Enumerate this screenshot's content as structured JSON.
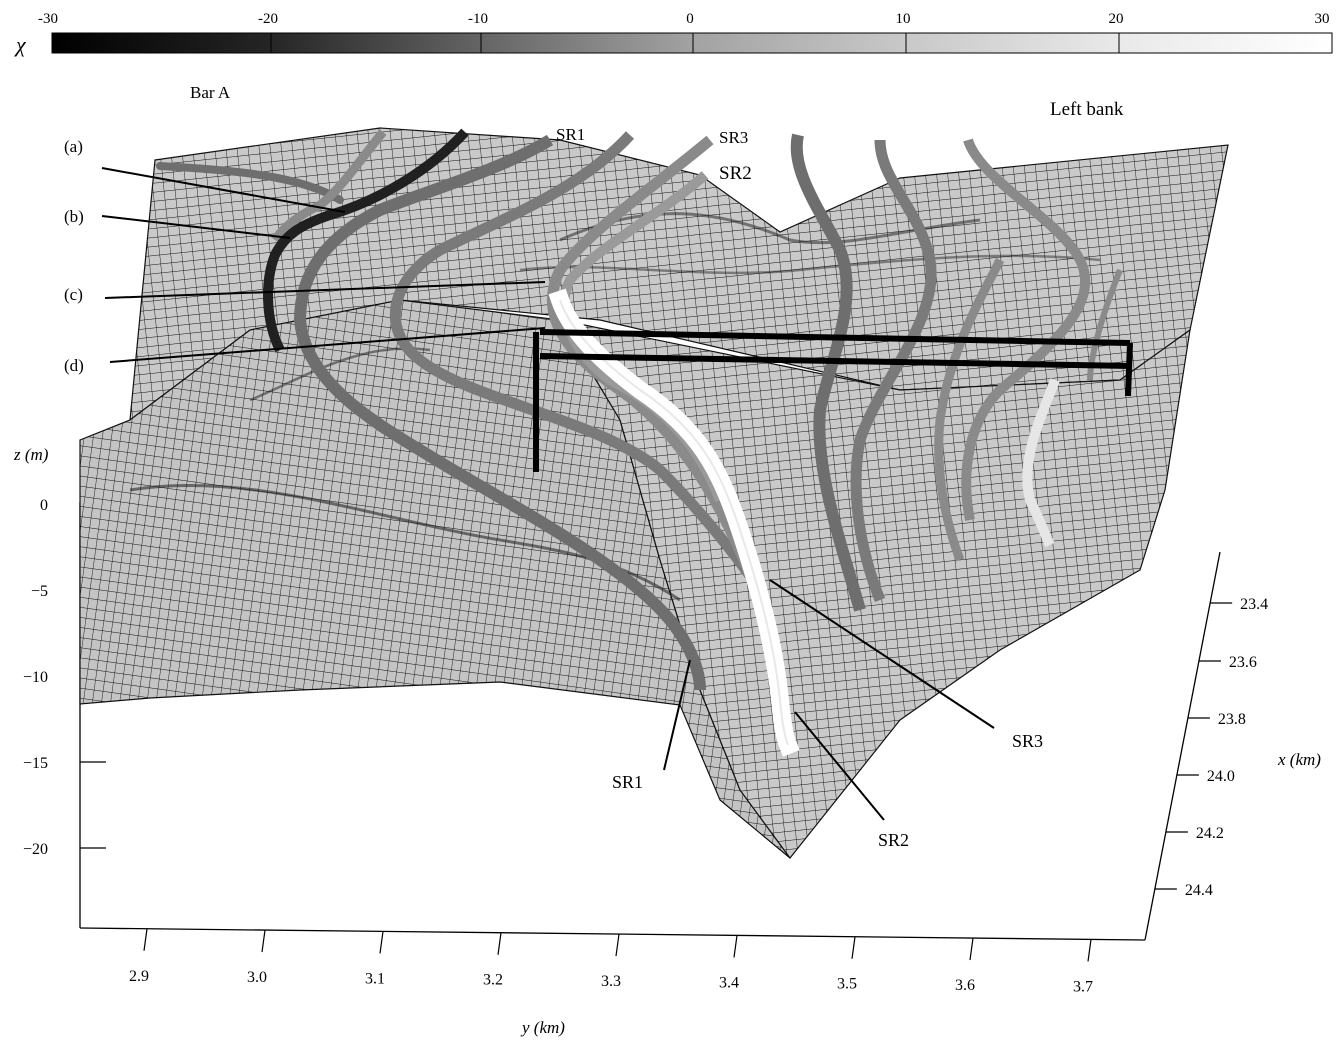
{
  "colorbar": {
    "symbol": "χ",
    "ticks": [
      "-30",
      "-20",
      "-10",
      "0",
      "10",
      "20",
      "30"
    ],
    "min": -30,
    "max": 30,
    "gradient": [
      "#000000",
      "#303030",
      "#787878",
      "#a8a8a8",
      "#cfcfcf",
      "#f6f6f6",
      "#ffffff"
    ]
  },
  "labels": {
    "bar_a": "Bar A",
    "left_bank": "Left bank",
    "a": "(a)",
    "b": "(b)",
    "c": "(c)",
    "d": "(d)",
    "sr1_top": "SR1",
    "sr3_top": "SR3",
    "sr2_top": "SR2",
    "sr1_bottom": "SR1",
    "sr2_bottom": "SR2",
    "sr3_bottom": "SR3"
  },
  "axes": {
    "z": {
      "label": "z (m)",
      "ticks": [
        "0",
        "−5",
        "−10",
        "−15",
        "−20"
      ]
    },
    "y": {
      "label": "y (km)",
      "ticks": [
        "2.9",
        "3.0",
        "3.1",
        "3.2",
        "3.3",
        "3.4",
        "3.5",
        "3.6",
        "3.7"
      ]
    },
    "x": {
      "label": "x (km)",
      "ticks": [
        "23.4",
        "23.6",
        "23.8",
        "24.0",
        "24.2",
        "24.4"
      ]
    }
  },
  "colors": {
    "surface_fill": "#c8c8c8",
    "mesh_line": "#111111",
    "ribbon_dark": "#202020",
    "ribbon_mid": "#6e6e6e",
    "ribbon_gray": "#8a8a8a",
    "ribbon_light": "#e6e6e6",
    "ribbon_white": "#ffffff"
  }
}
